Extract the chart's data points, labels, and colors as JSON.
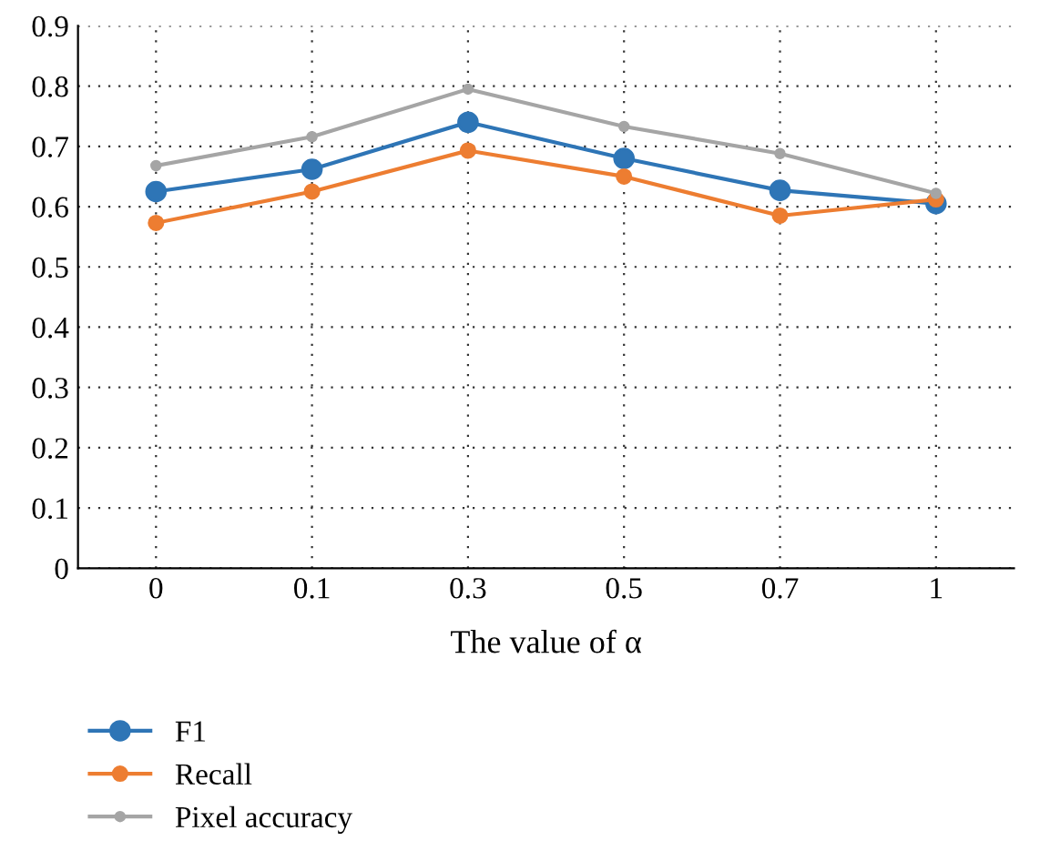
{
  "chart_data": {
    "type": "line",
    "xlabel": "The value of α",
    "categories": [
      "0",
      "0.1",
      "0.3",
      "0.5",
      "0.7",
      "1"
    ],
    "series": [
      {
        "name": "F1",
        "color": "#2e75b6",
        "values": [
          0.625,
          0.662,
          0.74,
          0.68,
          0.627,
          0.605
        ]
      },
      {
        "name": "Recall",
        "color": "#ed7d31",
        "values": [
          0.573,
          0.625,
          0.693,
          0.65,
          0.585,
          0.612
        ]
      },
      {
        "name": "Pixel accuracy",
        "color": "#a5a5a5",
        "values": [
          0.668,
          0.716,
          0.795,
          0.733,
          0.688,
          0.622
        ]
      }
    ],
    "ylim": [
      0,
      0.9
    ],
    "yticks": [
      0,
      0.1,
      0.2,
      0.3,
      0.4,
      0.5,
      0.6,
      0.7,
      0.8,
      0.9
    ],
    "grid": true,
    "legend": "bottom",
    "marker": "circle",
    "line_style": "solid"
  }
}
